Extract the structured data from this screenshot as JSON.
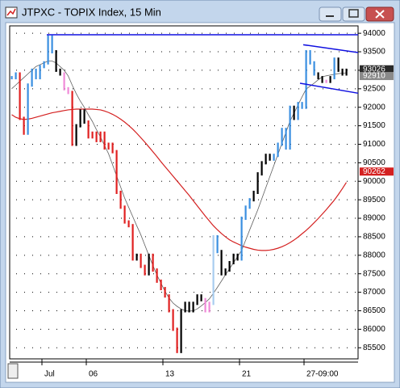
{
  "window": {
    "title": "JTPXC - TOPIX Index, 15 Min"
  },
  "chart_data": {
    "type": "stock",
    "categories": [
      null,
      null,
      null,
      null,
      null,
      null,
      null,
      null,
      "Jul",
      null,
      null,
      null,
      null,
      null,
      null,
      null,
      null,
      null,
      null,
      "06",
      null,
      null,
      null,
      null,
      null,
      null,
      null,
      null,
      null,
      null,
      null,
      null,
      null,
      null,
      null,
      null,
      null,
      null,
      "13",
      null,
      null,
      null,
      null,
      null,
      null,
      null,
      null,
      null,
      null,
      null,
      null,
      null,
      null,
      null,
      null,
      null,
      null,
      "21",
      null,
      null,
      null,
      null,
      null,
      null,
      null,
      null,
      null,
      null,
      null,
      null,
      null,
      null,
      null,
      "27-09:00",
      null,
      null,
      null,
      null,
      null,
      null,
      null,
      null,
      null,
      null
    ],
    "series": [
      {
        "values": [
          92800,
          92900,
          91700,
          91300,
          92600,
          93000,
          92800,
          93100,
          93200,
          93900,
          93500,
          93000,
          92900,
          92500,
          92400,
          91000,
          91500,
          91900,
          91600,
          91200,
          91300,
          91100,
          91300,
          90900,
          91000,
          90800,
          89700,
          89300,
          88900,
          88800,
          87900,
          88000,
          87700,
          87500,
          88000,
          87600,
          87300,
          87100,
          86900,
          86500,
          86000,
          85400,
          86500,
          86700,
          86500,
          86700,
          86900,
          86800,
          86500,
          86700,
          88500,
          88100,
          87500,
          87600,
          87800,
          88000,
          87900,
          89000,
          89300,
          89500,
          89700,
          90200,
          90500,
          90700,
          90600,
          90700,
          91000,
          91400,
          90900,
          92000,
          91700,
          92100,
          92000,
          93500,
          93200,
          92900,
          92800,
          92700,
          92700,
          92800,
          93300,
          93000,
          92900,
          93000
        ],
        "colors": [
          "#3a8fe0",
          "#3a8fe0",
          "#e02020",
          "#e02020",
          "#3a8fe0",
          "#3a8fe0",
          "#3a8fe0",
          "#3a8fe0",
          "#3a8fe0",
          "#3a8fe0",
          "#3a8fe0",
          "#000000",
          "#000000",
          "#f08ad8",
          "#f08ad8",
          "#e02020",
          "#000000",
          "#000000",
          "#000000",
          "#e02020",
          "#e02020",
          "#e02020",
          "#e02020",
          "#e02020",
          "#e02020",
          "#e02020",
          "#e02020",
          "#e02020",
          "#e02020",
          "#e02020",
          "#e02020",
          "#000000",
          "#e02020",
          "#e02020",
          "#000000",
          "#e02020",
          "#e02020",
          "#e02020",
          "#e02020",
          "#e02020",
          "#e02020",
          "#e02020",
          "#000000",
          "#000000",
          "#000000",
          "#000000",
          "#000000",
          "#000000",
          "#f08ad8",
          "#f08ad8",
          "#a8cdf0",
          "#3a8fe0",
          "#000000",
          "#000000",
          "#000000",
          "#000000",
          "#000000",
          "#3a8fe0",
          "#3a8fe0",
          "#3a8fe0",
          "#000000",
          "#000000",
          "#000000",
          "#000000",
          "#000000",
          "#3a8fe0",
          "#3a8fe0",
          "#3a8fe0",
          "#3a8fe0",
          "#3a8fe0",
          "#000000",
          "#3a8fe0",
          "#3a8fe0",
          "#3a8fe0",
          "#3a8fe0",
          "#3a8fe0",
          "#000000",
          "#000000",
          "#f08ad8",
          "#000000",
          "#3a8fe0",
          "#000000",
          "#000000",
          "#000000"
        ]
      },
      {
        "color": "#d42020",
        "values": [
          91800,
          91730,
          91690,
          91670,
          91680,
          91700,
          91730,
          91760,
          91790,
          91820,
          91850,
          91870,
          91890,
          91910,
          91930,
          91940,
          91950,
          91950,
          91950,
          91950,
          91950,
          91940,
          91930,
          91900,
          91860,
          91810,
          91750,
          91680,
          91600,
          91510,
          91410,
          91300,
          91180,
          91060,
          90930,
          90800,
          90670,
          90530,
          90400,
          90270,
          90140,
          90010,
          89880,
          89750,
          89620,
          89480,
          89340,
          89200,
          89060,
          88930,
          88800,
          88690,
          88590,
          88500,
          88420,
          88360,
          88310,
          88260,
          88220,
          88190,
          88160,
          88140,
          88130,
          88130,
          88140,
          88160,
          88190,
          88230,
          88280,
          88340,
          88410,
          88490,
          88580,
          88670,
          88770,
          88880,
          88990,
          89110,
          89230,
          89360,
          89490,
          89640,
          89800,
          89970
        ]
      },
      {
        "color": "#606060",
        "values": [
          92500,
          92600,
          92700,
          92800,
          92900,
          93000,
          93100,
          93150,
          93200,
          93250,
          93250,
          93200,
          93100,
          93000,
          92850,
          92600,
          92370,
          92170,
          92000,
          91800,
          91620,
          91400,
          91200,
          90970,
          90750,
          90450,
          90150,
          89850,
          89550,
          89300,
          89050,
          88800,
          88560,
          88280,
          88000,
          87730,
          87470,
          87250,
          87030,
          86850,
          86710,
          86620,
          86550,
          86500,
          86490,
          86500,
          86550,
          86630,
          86720,
          86820,
          86970,
          87130,
          87300,
          87470,
          87630,
          87800,
          87960,
          88130,
          88400,
          88680,
          88950,
          89220,
          89520,
          89820,
          90120,
          90420,
          90720,
          91020,
          91320,
          91620,
          91840,
          92060,
          92280,
          92490,
          92570,
          92650,
          92740,
          92820,
          92850,
          92870,
          92890,
          92910,
          92920,
          92930
        ]
      }
    ],
    "trendlines": [
      {
        "color": "#1010e0",
        "values": [
          93960,
          93960
        ]
      },
      {
        "color": "#1010e0",
        "values": [
          93690,
          93480
        ]
      },
      {
        "color": "#1010e0",
        "values": [
          92650,
          92380
        ]
      }
    ],
    "price_markers": [
      {
        "value": 93026,
        "color": "#2a2a2a"
      },
      {
        "value": 92910,
        "color": "#8a8a8a"
      },
      {
        "value": 90262,
        "color": "#d42020"
      }
    ],
    "ylim": [
      85200,
      94200
    ],
    "yticks": [
      85500,
      86000,
      86500,
      87000,
      87500,
      88000,
      88500,
      89000,
      89500,
      90000,
      90500,
      91000,
      91500,
      92000,
      92500,
      93000,
      93500,
      94000
    ],
    "grid": true
  }
}
